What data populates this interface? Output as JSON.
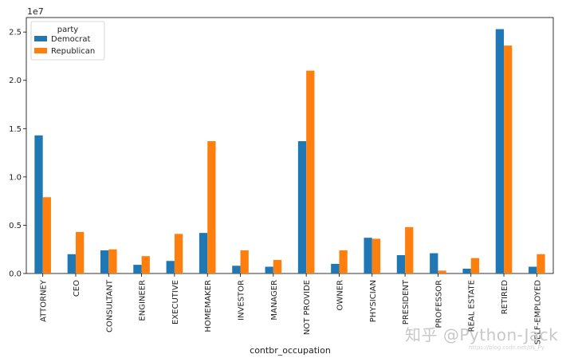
{
  "chart_data": {
    "type": "bar",
    "xlabel": "contbr_occupation",
    "ylabel": "",
    "offset_label": "1e7",
    "ylim": [
      0,
      2.65
    ],
    "yticks": [
      0.0,
      0.5,
      1.0,
      1.5,
      2.0,
      2.5
    ],
    "ytick_labels": [
      "0.0",
      "0.5",
      "1.0",
      "1.5",
      "2.0",
      "2.5"
    ],
    "legend_title": "party",
    "legend_position": "top-left",
    "grid": false,
    "categories": [
      "ATTORNEY",
      "CEO",
      "CONSULTANT",
      "ENGINEER",
      "EXECUTIVE",
      "HOMEMAKER",
      "INVESTOR",
      "MANAGER",
      "NOT PROVIDE",
      "OWNER",
      "PHYSICIAN",
      "PRESIDENT",
      "PROFESSOR",
      "REAL ESTATE",
      "RETIRED",
      "SELF-EMPLOYED"
    ],
    "series": [
      {
        "name": "Democrat",
        "color": "#1f77b4",
        "values": [
          1.43,
          0.2,
          0.24,
          0.09,
          0.13,
          0.42,
          0.08,
          0.07,
          1.37,
          0.1,
          0.37,
          0.19,
          0.21,
          0.05,
          2.53,
          0.07
        ]
      },
      {
        "name": "Republican",
        "color": "#ff7f0e",
        "values": [
          0.79,
          0.43,
          0.25,
          0.18,
          0.41,
          1.37,
          0.24,
          0.14,
          2.1,
          0.24,
          0.36,
          0.48,
          0.03,
          0.16,
          2.36,
          0.2
        ]
      }
    ]
  },
  "watermark": {
    "text": "知乎 @Python-Jack",
    "url": "https://blog.csdn.net/tN_Py"
  }
}
